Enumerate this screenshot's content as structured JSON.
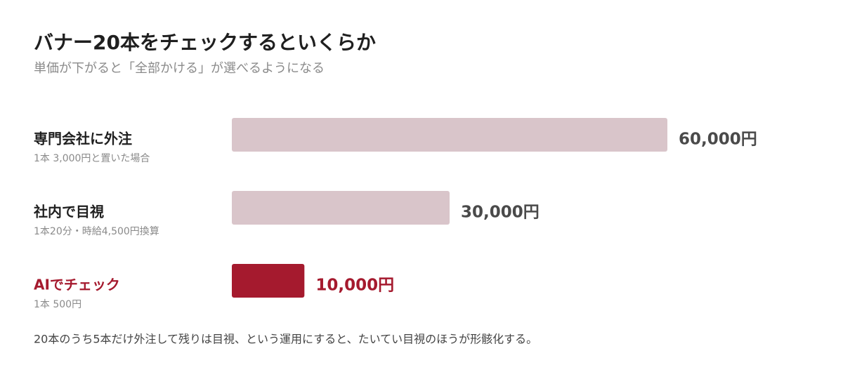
{
  "chart_data": {
    "type": "hbar",
    "title": "バナー20本をチェックするといくらか",
    "subtitle": "単価が下がると「全部かける」が選べるようになる",
    "categories": [
      "専門会社に外注",
      "社内で目視",
      "AIでチェック"
    ],
    "descriptions": [
      "1本 3,000円と置いた場合",
      "1本20分・時給4,500円換算",
      "1本 500円"
    ],
    "values": [
      60000,
      30000,
      10000
    ],
    "value_labels": [
      "60,000円",
      "30,000円",
      "10,000円"
    ],
    "colors": [
      "#d9c5ca",
      "#d9c5ca",
      "#a51a2e"
    ],
    "label_colors": [
      "#1f1f1f",
      "#1f1f1f",
      "#a51a2e"
    ],
    "value_label_colors": [
      "#4a4a4a",
      "#4a4a4a",
      "#a51a2e"
    ],
    "footnote": "20本のうち5本だけ外注して残りは目視、という運用にすると、たいてい目視のほうが形骸化する。"
  }
}
